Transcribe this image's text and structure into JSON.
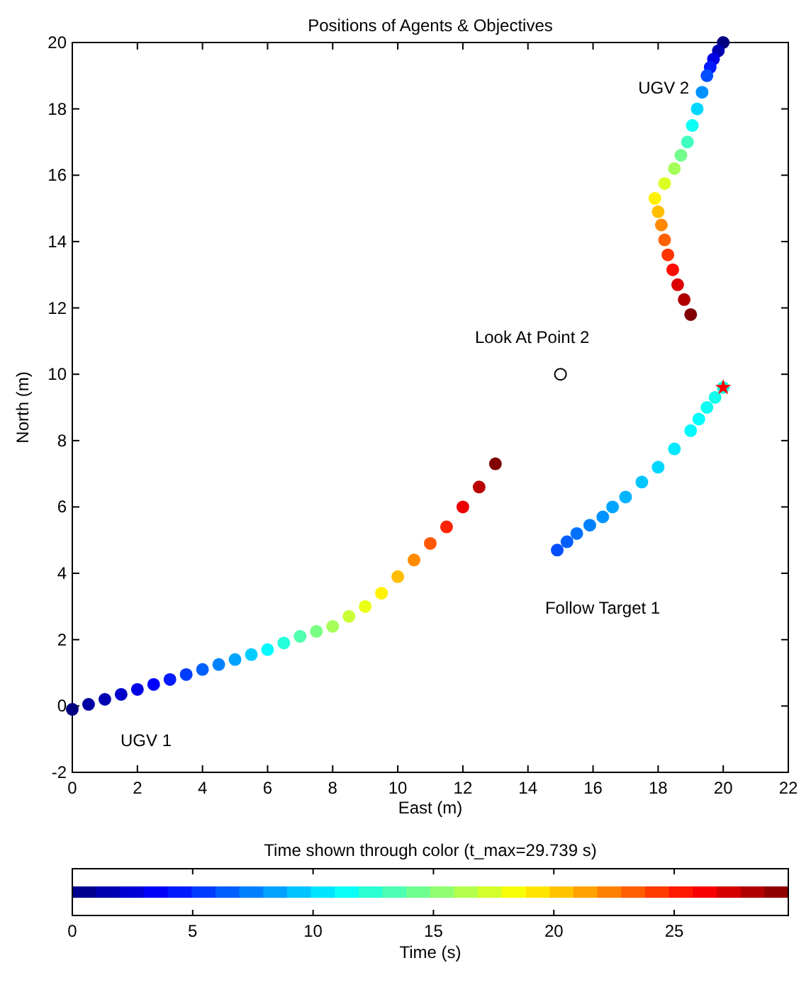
{
  "chart_data": {
    "type": "scatter",
    "title": "Positions of Agents & Objectives",
    "xlabel": "East (m)",
    "ylabel": "North (m)",
    "clabel": "Time (s)",
    "xlim": [
      0,
      22
    ],
    "xticks": [
      0,
      2,
      4,
      6,
      8,
      10,
      12,
      14,
      16,
      18,
      20,
      22
    ],
    "ylim": [
      -2,
      20
    ],
    "yticks": [
      -2,
      0,
      2,
      4,
      6,
      8,
      10,
      12,
      14,
      16,
      18,
      20
    ],
    "clim": [
      0,
      29.739
    ],
    "cticks": [
      0,
      5,
      10,
      15,
      20,
      25
    ],
    "grid": false,
    "series": [
      {
        "name": "UGV 1",
        "marker": "circle",
        "x": [
          0,
          0.5,
          1,
          1.5,
          2,
          2.5,
          3,
          3.5,
          4,
          4.5,
          5,
          5.5,
          6,
          6.5,
          7,
          7.5,
          8,
          8.5,
          9,
          9.5,
          10,
          10.5,
          11,
          11.5,
          12,
          12.5,
          13
        ],
        "values": [
          -0.1,
          0.05,
          0.2,
          0.35,
          0.5,
          0.65,
          0.8,
          0.95,
          1.1,
          1.25,
          1.4,
          1.55,
          1.7,
          1.9,
          2.1,
          2.25,
          2.4,
          2.7,
          3,
          3.4,
          3.9,
          4.4,
          4.9,
          5.4,
          6,
          6.6,
          7.3
        ],
        "cvalues": [
          0,
          1,
          1.5,
          2.2,
          3,
          3.7,
          4.5,
          5.5,
          6.5,
          7.5,
          8.5,
          9.7,
          11,
          12.2,
          13.5,
          14.7,
          16,
          17,
          18,
          19,
          20.5,
          22,
          23.5,
          25,
          26.5,
          28,
          29.7
        ],
        "colors": [
          "#000080",
          "#0000a2",
          "#0000b3",
          "#0000cb",
          "#0000e5",
          "#0000fe",
          "#001bff",
          "#003dff",
          "#005fff",
          "#0082ff",
          "#00a4ff",
          "#00cdff",
          "#00faff",
          "#24ffdb",
          "#51ffae",
          "#7aff85",
          "#a6ff59",
          "#c9ff36",
          "#ebff14",
          "#fff100",
          "#ffbd00",
          "#ff8a00",
          "#ff5600",
          "#ff2300",
          "#ef0000",
          "#bb0000",
          "#810000"
        ]
      },
      {
        "name": "UGV 2",
        "marker": "circle",
        "x": [
          20,
          19.85,
          19.7,
          19.6,
          19.5,
          19.35,
          19.2,
          19.05,
          18.9,
          18.7,
          18.5,
          18.2,
          17.9,
          18,
          18.1,
          18.2,
          18.3,
          18.45,
          18.6,
          18.8,
          19
        ],
        "values": [
          20,
          19.75,
          19.5,
          19.25,
          19,
          18.5,
          18,
          17.5,
          17,
          16.6,
          16.2,
          15.75,
          15.3,
          14.9,
          14.5,
          14.05,
          13.6,
          13.15,
          12.7,
          12.25,
          11.8
        ],
        "cvalues": [
          0,
          1.5,
          3,
          4.5,
          6,
          8,
          10,
          11.5,
          13,
          14.5,
          16,
          17.5,
          19,
          20.5,
          22,
          23.2,
          24.5,
          25.7,
          27,
          28.3,
          29.7
        ],
        "colors": [
          "#000080",
          "#0000b3",
          "#0000e5",
          "#001bff",
          "#004eff",
          "#0093ff",
          "#00d7ff",
          "#0cfff3",
          "#3fffc0",
          "#73ff8c",
          "#a6ff59",
          "#daff25",
          "#fff100",
          "#ffbd00",
          "#ff8a00",
          "#ff6100",
          "#ff3400",
          "#ff0b00",
          "#dd0000",
          "#b10000",
          "#810000"
        ]
      },
      {
        "name": "Follow Target 1",
        "marker": "circle",
        "x": [
          14.9,
          15.2,
          15.5,
          15.9,
          16.3,
          16.6,
          17,
          17.5,
          18,
          18.5,
          19,
          19.25,
          19.5,
          19.75,
          20
        ],
        "values": [
          4.7,
          4.95,
          5.2,
          5.45,
          5.7,
          6,
          6.3,
          6.75,
          7.2,
          7.75,
          8.3,
          8.65,
          9,
          9.3,
          9.6
        ],
        "cvalues": [
          6,
          6.5,
          7,
          7.5,
          8,
          8.5,
          9,
          9.5,
          10,
          10.5,
          11,
          11.2,
          11.5,
          11.7,
          12
        ],
        "colors": [
          "#004eff",
          "#005fff",
          "#0071ff",
          "#0082ff",
          "#0093ff",
          "#00a4ff",
          "#00b5ff",
          "#00c6ff",
          "#00d7ff",
          "#00e9ff",
          "#00faff",
          "#02fffd",
          "#0cfff3",
          "#13ffec",
          "#1dffe2"
        ]
      },
      {
        "marker": "star",
        "color": "#ff0000",
        "x": [
          20
        ],
        "values": [
          9.6
        ]
      },
      {
        "name": "Look At Point 2",
        "marker": "circle",
        "color": "#000000",
        "x": [
          15
        ],
        "values": [
          10
        ]
      }
    ],
    "annotations": [
      "Time shown through color (t_max=29.739 s)"
    ]
  }
}
